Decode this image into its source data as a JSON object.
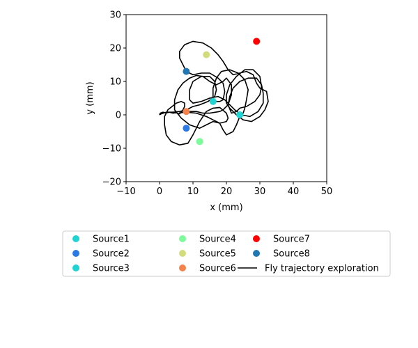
{
  "chart_data": {
    "type": "scatter",
    "title": "",
    "xlabel": "x (mm)",
    "ylabel": "y (mm)",
    "xlim": [
      -10,
      50
    ],
    "ylim": [
      -20,
      30
    ],
    "xticks": [
      -10,
      0,
      10,
      20,
      30,
      40,
      50
    ],
    "yticks": [
      -20,
      -10,
      0,
      10,
      20,
      30
    ],
    "xtick_labels": [
      "−10",
      "0",
      "10",
      "20",
      "30",
      "40",
      "50"
    ],
    "ytick_labels": [
      "−20",
      "−10",
      "0",
      "10",
      "20",
      "30"
    ],
    "grid": false,
    "legend_position": "below",
    "sources": [
      {
        "name": "Source1",
        "x": 16,
        "y": 4,
        "color": "#22d3d3"
      },
      {
        "name": "Source2",
        "x": 8,
        "y": -4,
        "color": "#2c7ae6"
      },
      {
        "name": "Source3",
        "x": 24,
        "y": 0,
        "color": "#22d3d3"
      },
      {
        "name": "Source4",
        "x": 12,
        "y": -8,
        "color": "#7dfa9a"
      },
      {
        "name": "Source5",
        "x": 14,
        "y": 18,
        "color": "#d2dc7c"
      },
      {
        "name": "Source6",
        "x": 8,
        "y": 1,
        "color": "#f4824a"
      },
      {
        "name": "Source7",
        "x": 29,
        "y": 22,
        "color": "#ff0000"
      },
      {
        "name": "Source8",
        "x": 8,
        "y": 13,
        "color": "#2077b4"
      }
    ],
    "trajectory": {
      "name": "Fly trajectory exploration",
      "color": "#000000",
      "points": [
        [
          0,
          0
        ],
        [
          0.2,
          0.5
        ],
        [
          1,
          0.8
        ],
        [
          2,
          0.6
        ],
        [
          3,
          0.8
        ],
        [
          4,
          0.5
        ],
        [
          5,
          0.6
        ],
        [
          6,
          0.3
        ],
        [
          6.5,
          0.8
        ],
        [
          7,
          1.5
        ],
        [
          7.5,
          2.5
        ],
        [
          7.5,
          3.5
        ],
        [
          6.5,
          4
        ],
        [
          5,
          3.5
        ],
        [
          2.5,
          1.5
        ],
        [
          1.5,
          -0.5
        ],
        [
          1.5,
          -3
        ],
        [
          2,
          -6
        ],
        [
          3.5,
          -8
        ],
        [
          6,
          -9
        ],
        [
          8.5,
          -8.5
        ],
        [
          10,
          -6
        ],
        [
          11,
          -4
        ],
        [
          12,
          -2
        ],
        [
          13,
          -0.5
        ],
        [
          14,
          1
        ],
        [
          16,
          2
        ],
        [
          18,
          2.2
        ],
        [
          20,
          0.5
        ],
        [
          20.5,
          -1
        ],
        [
          20,
          -2
        ],
        [
          18,
          -2.5
        ],
        [
          16,
          -2
        ],
        [
          14,
          -3
        ],
        [
          12,
          -4
        ],
        [
          9,
          -3
        ],
        [
          6.5,
          -1
        ],
        [
          4.5,
          1.5
        ],
        [
          4.5,
          4.5
        ],
        [
          5.5,
          7.5
        ],
        [
          7,
          9.5
        ],
        [
          9,
          11
        ],
        [
          11,
          11.8
        ],
        [
          13,
          11.5
        ],
        [
          15,
          10
        ],
        [
          17,
          9
        ],
        [
          19,
          10
        ],
        [
          20,
          11
        ],
        [
          21.5,
          9
        ],
        [
          21.5,
          6
        ],
        [
          20.5,
          3
        ],
        [
          19,
          1.5
        ],
        [
          18,
          1
        ],
        [
          15,
          0.5
        ],
        [
          13,
          0.5
        ],
        [
          11,
          1
        ],
        [
          8,
          1
        ],
        [
          6,
          0.6
        ],
        [
          8,
          0.8
        ],
        [
          11,
          0.5
        ],
        [
          14,
          -0.5
        ],
        [
          16,
          -1.5
        ],
        [
          18,
          -2.5
        ],
        [
          19,
          -4.5
        ],
        [
          20,
          -6
        ],
        [
          22,
          -5
        ],
        [
          23,
          -3
        ],
        [
          24,
          -0.5
        ],
        [
          25,
          0.5
        ],
        [
          25.5,
          2
        ],
        [
          26,
          4.5
        ],
        [
          26.5,
          7.5
        ],
        [
          25.5,
          10.5
        ],
        [
          23.5,
          12.5
        ],
        [
          21,
          13.5
        ],
        [
          18.5,
          13
        ],
        [
          17,
          11
        ],
        [
          16,
          8
        ],
        [
          16,
          5
        ],
        [
          17,
          4
        ],
        [
          18,
          4
        ],
        [
          19,
          4.5
        ],
        [
          19.5,
          7
        ],
        [
          19,
          9.5
        ],
        [
          17.5,
          11
        ],
        [
          15,
          12.5
        ],
        [
          12.5,
          12.5
        ],
        [
          10,
          12
        ],
        [
          8,
          13
        ],
        [
          7,
          15
        ],
        [
          6,
          17
        ],
        [
          6,
          19
        ],
        [
          7.5,
          21
        ],
        [
          10,
          22
        ],
        [
          13,
          21.5
        ],
        [
          15.5,
          20
        ],
        [
          17.5,
          18
        ],
        [
          19,
          16
        ],
        [
          20.5,
          13.5
        ],
        [
          22,
          12
        ],
        [
          24,
          12.5
        ],
        [
          26,
          13
        ],
        [
          28,
          12
        ],
        [
          29,
          9.5
        ],
        [
          30,
          8
        ],
        [
          32,
          7
        ],
        [
          32.5,
          4
        ],
        [
          31.5,
          1.5
        ],
        [
          30,
          -0.5
        ],
        [
          27.5,
          -2
        ],
        [
          25,
          -1.5
        ],
        [
          23,
          0
        ],
        [
          21,
          2
        ],
        [
          20,
          3.5
        ],
        [
          20,
          6
        ],
        [
          21,
          9
        ],
        [
          23,
          11.5
        ],
        [
          25.5,
          13.5
        ],
        [
          28,
          13.5
        ],
        [
          30,
          11.5
        ],
        [
          30.5,
          8.5
        ],
        [
          30,
          6
        ],
        [
          28.5,
          4
        ],
        [
          26,
          2.5
        ],
        [
          24,
          2
        ],
        [
          23,
          1
        ],
        [
          21.5,
          0.5
        ],
        [
          20.5,
          3
        ],
        [
          21,
          5.5
        ],
        [
          22,
          8
        ],
        [
          24,
          10
        ],
        [
          26.5,
          11
        ],
        [
          29,
          11
        ],
        [
          30.5,
          9
        ],
        [
          31,
          6.5
        ],
        [
          31,
          3.5
        ],
        [
          29.5,
          1
        ],
        [
          27,
          -0.5
        ],
        [
          24.5,
          0
        ],
        [
          22.5,
          1.5
        ],
        [
          21,
          3
        ],
        [
          19.5,
          4.5
        ],
        [
          17.5,
          5.5
        ],
        [
          15,
          5
        ],
        [
          12.5,
          4
        ],
        [
          10,
          3.5
        ],
        [
          9,
          4.5
        ],
        [
          9,
          7.5
        ],
        [
          10,
          10
        ],
        [
          12.5,
          11.5
        ],
        [
          15,
          11.5
        ],
        [
          16.5,
          10
        ],
        [
          17,
          7.5
        ],
        [
          16.5,
          5.5
        ],
        [
          14.5,
          4
        ],
        [
          12,
          3
        ],
        [
          10,
          2.5
        ],
        [
          8,
          1.5
        ],
        [
          6,
          1
        ],
        [
          4,
          0.8
        ],
        [
          2,
          0.8
        ],
        [
          0.5,
          0.3
        ],
        [
          0,
          0
        ]
      ]
    }
  },
  "legend": {
    "entries": [
      "Source1",
      "Source4",
      "Source7",
      "Source2",
      "Source5",
      "Source8",
      "Source3",
      "Source6",
      "Fly trajectory exploration"
    ]
  }
}
